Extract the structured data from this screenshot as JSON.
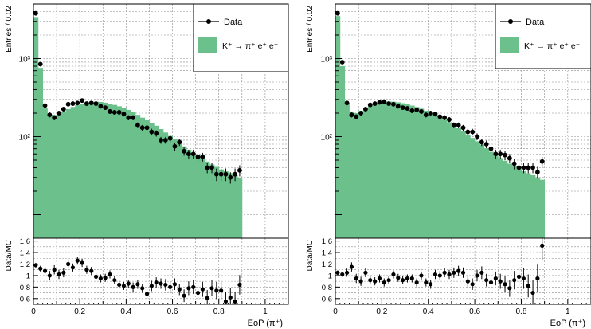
{
  "chart_data": [
    {
      "type": "bar",
      "panel": "left",
      "xlabel": "EoP (π⁺)",
      "ylabel": "Entries / 0.02",
      "ratio_ylabel": "Data/MC",
      "xlim": [
        0,
        1.1
      ],
      "ylim_log": [
        5,
        5000
      ],
      "ratio_ylim": [
        0.5,
        1.65
      ],
      "x_ticks": [
        "0",
        "0.2",
        "0.4",
        "0.6",
        "0.8",
        "1"
      ],
      "x_tick_values": [
        0,
        0.2,
        0.4,
        0.6,
        0.8,
        1.0
      ],
      "y_ticks": [
        "10²",
        "10³"
      ],
      "y_tick_values": [
        100,
        1000
      ],
      "ratio_ticks": [
        "0.6",
        "0.8",
        "1",
        "1.2",
        "1.4",
        "1.6"
      ],
      "ratio_tick_values": [
        0.6,
        0.8,
        1.0,
        1.2,
        1.4,
        1.6
      ],
      "grid": true,
      "legend_position": "top-right",
      "legend": {
        "data_label": "Data",
        "mc_label": "K⁺ → π⁺ e⁺ e⁻"
      },
      "bin_width": 0.02,
      "bin_edges_start": 0,
      "mc": [
        3400,
        760,
        230,
        190,
        190,
        200,
        210,
        225,
        240,
        255,
        265,
        275,
        280,
        280,
        278,
        272,
        265,
        255,
        245,
        232,
        220,
        205,
        190,
        175,
        162,
        150,
        138,
        125,
        113,
        102,
        92,
        83,
        75,
        68,
        62,
        57,
        52,
        48,
        44,
        41,
        38,
        36,
        34,
        32,
        30
      ],
      "data": [
        3800,
        850,
        250,
        190,
        175,
        200,
        225,
        260,
        265,
        270,
        290,
        265,
        270,
        265,
        245,
        235,
        210,
        205,
        205,
        195,
        175,
        175,
        140,
        130,
        130,
        115,
        110,
        90,
        90,
        95,
        75,
        85,
        65,
        60,
        60,
        55,
        55,
        40,
        40,
        33,
        33,
        33,
        30,
        33,
        37
      ],
      "data_err": [
        60,
        29,
        16,
        14,
        13,
        14,
        15,
        16,
        16,
        16,
        17,
        16,
        16,
        16,
        16,
        15,
        14,
        14,
        14,
        14,
        13,
        13,
        12,
        11,
        11,
        11,
        10,
        9,
        9,
        10,
        9,
        9,
        8,
        8,
        8,
        7,
        7,
        6,
        6,
        6,
        6,
        6,
        5,
        6,
        6
      ],
      "ratio": [
        1.18,
        1.12,
        1.08,
        1.0,
        1.1,
        1.02,
        1.05,
        1.2,
        1.14,
        1.26,
        1.22,
        1.1,
        1.08,
        0.98,
        0.95,
        0.96,
        1.02,
        0.92,
        0.84,
        0.82,
        0.86,
        0.8,
        0.85,
        0.78,
        0.68,
        0.82,
        0.88,
        0.86,
        0.84,
        0.8,
        0.85,
        0.76,
        0.65,
        0.78,
        0.8,
        0.7,
        0.76,
        0.61,
        0.78,
        0.74,
        0.74,
        0.55,
        0.62,
        0.55,
        0.84
      ],
      "ratio_err": [
        0.04,
        0.05,
        0.07,
        0.08,
        0.08,
        0.08,
        0.08,
        0.07,
        0.07,
        0.07,
        0.07,
        0.07,
        0.07,
        0.07,
        0.07,
        0.07,
        0.07,
        0.07,
        0.07,
        0.07,
        0.07,
        0.08,
        0.08,
        0.08,
        0.08,
        0.09,
        0.09,
        0.09,
        0.1,
        0.1,
        0.1,
        0.1,
        0.11,
        0.12,
        0.12,
        0.13,
        0.13,
        0.14,
        0.14,
        0.15,
        0.15,
        0.16,
        0.16,
        0.17,
        0.17
      ]
    },
    {
      "type": "bar",
      "panel": "right",
      "xlabel": "EoP (π⁺)",
      "ylabel": "Entries / 0.02",
      "ratio_ylabel": "Data/MC",
      "xlim": [
        0,
        1.1
      ],
      "ylim_log": [
        5,
        5000
      ],
      "ratio_ylim": [
        0.5,
        1.65
      ],
      "x_ticks": [
        "0",
        "0.2",
        "0.4",
        "0.6",
        "0.8",
        "1"
      ],
      "x_tick_values": [
        0,
        0.2,
        0.4,
        0.6,
        0.8,
        1.0
      ],
      "y_ticks": [
        "10²",
        "10³"
      ],
      "y_tick_values": [
        100,
        1000
      ],
      "ratio_ticks": [
        "0.6",
        "0.8",
        "1",
        "1.2",
        "1.4",
        "1.6"
      ],
      "ratio_tick_values": [
        0.6,
        0.8,
        1.0,
        1.2,
        1.4,
        1.6
      ],
      "grid": true,
      "legend_position": "top-right",
      "legend": {
        "data_label": "Data",
        "mc_label": "K⁺ → π⁺ e⁺ e⁻"
      },
      "bin_width": 0.02,
      "bin_edges_start": 0,
      "mc": [
        3500,
        800,
        270,
        210,
        200,
        215,
        235,
        250,
        265,
        275,
        280,
        282,
        280,
        275,
        268,
        260,
        250,
        240,
        228,
        215,
        202,
        190,
        177,
        165,
        152,
        140,
        128,
        117,
        106,
        96,
        87,
        79,
        71,
        64,
        58,
        53,
        49,
        45,
        42,
        39,
        36,
        34,
        32,
        30,
        28
      ],
      "data": [
        3800,
        900,
        270,
        190,
        180,
        200,
        225,
        255,
        265,
        275,
        280,
        265,
        260,
        245,
        235,
        230,
        215,
        220,
        210,
        190,
        200,
        195,
        180,
        175,
        165,
        140,
        140,
        130,
        115,
        115,
        100,
        85,
        80,
        70,
        60,
        60,
        58,
        53,
        45,
        40,
        40,
        40,
        40,
        35,
        48
      ],
      "data_err": [
        60,
        30,
        16,
        14,
        13,
        14,
        15,
        16,
        16,
        17,
        17,
        16,
        16,
        16,
        15,
        15,
        15,
        15,
        14,
        14,
        14,
        14,
        13,
        13,
        13,
        12,
        12,
        11,
        11,
        11,
        10,
        9,
        9,
        8,
        8,
        8,
        8,
        7,
        7,
        6,
        6,
        6,
        6,
        6,
        7
      ],
      "ratio": [
        1.05,
        1.02,
        1.05,
        1.15,
        0.95,
        0.9,
        1.05,
        0.92,
        0.9,
        0.95,
        0.88,
        0.92,
        1.02,
        0.96,
        0.92,
        0.95,
        0.95,
        0.88,
        1.0,
        0.88,
        0.85,
        1.02,
        1.0,
        1.05,
        1.02,
        1.05,
        1.08,
        1.05,
        0.9,
        0.85,
        1.0,
        1.05,
        0.92,
        0.88,
        0.95,
        0.9,
        0.85,
        0.78,
        0.92,
        0.98,
        0.95,
        0.82,
        0.7,
        0.95,
        1.52
      ],
      "ratio_err": [
        0.04,
        0.05,
        0.07,
        0.08,
        0.08,
        0.08,
        0.08,
        0.07,
        0.07,
        0.07,
        0.07,
        0.07,
        0.07,
        0.07,
        0.07,
        0.07,
        0.07,
        0.07,
        0.07,
        0.07,
        0.08,
        0.08,
        0.08,
        0.08,
        0.08,
        0.09,
        0.09,
        0.09,
        0.1,
        0.1,
        0.1,
        0.11,
        0.11,
        0.12,
        0.12,
        0.13,
        0.14,
        0.15,
        0.16,
        0.17,
        0.18,
        0.2,
        0.22,
        0.24,
        0.26
      ]
    }
  ],
  "colors": {
    "mc_fill": "#6cc08b",
    "data_marker": "#000000",
    "grid": "#888888",
    "axis": "#000000",
    "background": "#ffffff"
  }
}
